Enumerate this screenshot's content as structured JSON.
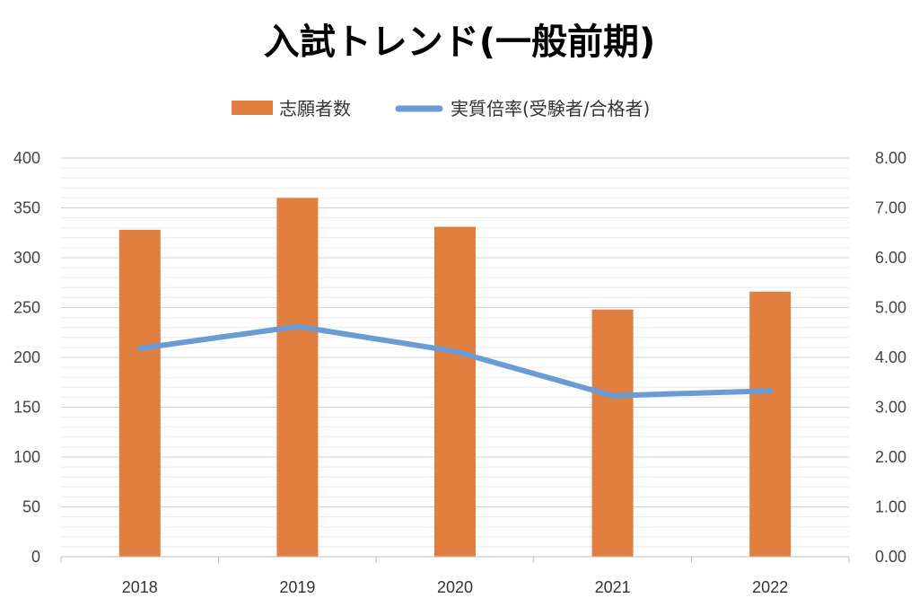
{
  "chart_data": {
    "type": "bar",
    "title": "入試トレンド(一般前期)",
    "categories": [
      "2018",
      "2019",
      "2020",
      "2021",
      "2022"
    ],
    "series": [
      {
        "name": "志願者数",
        "type": "bar",
        "axis": "left",
        "color": "#E07F40",
        "values": [
          328,
          360,
          331,
          248,
          266
        ]
      },
      {
        "name": "実質倍率(受験者/合格者)",
        "type": "line",
        "axis": "right",
        "color": "#6A9BD4",
        "values": [
          4.18,
          4.62,
          4.12,
          3.23,
          3.33
        ]
      }
    ],
    "y_left": {
      "ylim": [
        0,
        400
      ],
      "ticks": [
        "0",
        "50",
        "100",
        "150",
        "200",
        "250",
        "300",
        "350",
        "400"
      ]
    },
    "y_right": {
      "ylim": [
        0,
        8
      ],
      "ticks": [
        "0.00",
        "1.00",
        "2.00",
        "3.00",
        "4.00",
        "5.00",
        "6.00",
        "7.00",
        "8.00"
      ]
    },
    "grid": true,
    "legend": "top"
  }
}
